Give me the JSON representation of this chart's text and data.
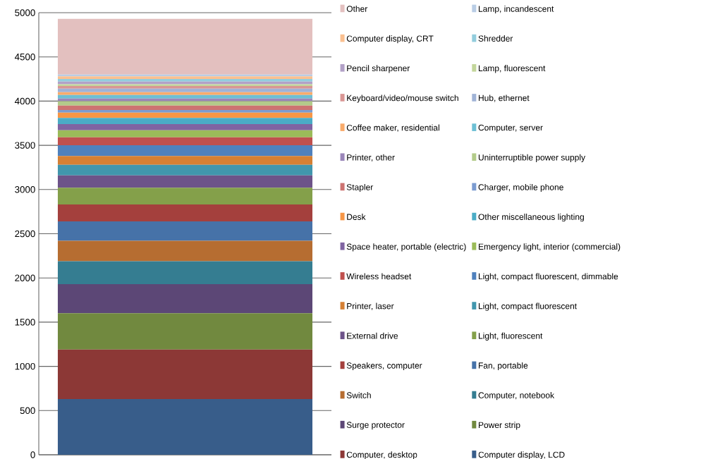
{
  "chart_data": {
    "type": "bar",
    "stacked": true,
    "categories": [
      null
    ],
    "ylim": [
      0,
      5000
    ],
    "yticks": [
      0,
      500,
      1000,
      1500,
      2000,
      2500,
      3000,
      3500,
      4000,
      4500,
      5000
    ],
    "grid": "y",
    "legend": "right",
    "series": [
      {
        "name": "Computer display, LCD",
        "color": "#385d8a",
        "values": [
          630
        ]
      },
      {
        "name": "Computer, desktop",
        "color": "#8c3836",
        "values": [
          560
        ]
      },
      {
        "name": "Power strip",
        "color": "#71893f",
        "values": [
          410
        ]
      },
      {
        "name": "Surge protector",
        "color": "#5c4776",
        "values": [
          330
        ]
      },
      {
        "name": "Computer, notebook",
        "color": "#357d91",
        "values": [
          260
        ]
      },
      {
        "name": "Switch",
        "color": "#b66d31",
        "values": [
          230
        ]
      },
      {
        "name": "Fan, portable",
        "color": "#4672a8",
        "values": [
          220
        ]
      },
      {
        "name": "Speakers, computer",
        "color": "#a4403d",
        "values": [
          190
        ]
      },
      {
        "name": "Light, fluorescent",
        "color": "#84a04a",
        "values": [
          190
        ]
      },
      {
        "name": "External drive",
        "color": "#6d5389",
        "values": [
          140
        ]
      },
      {
        "name": "Light, compact fluorescent",
        "color": "#4196ad",
        "values": [
          120
        ]
      },
      {
        "name": "Printer, laser",
        "color": "#d58034",
        "values": [
          100
        ]
      },
      {
        "name": "Light, compact fluorescent, dimmable",
        "color": "#4f81bd",
        "values": [
          120
        ]
      },
      {
        "name": "Wireless headset",
        "color": "#c0504d",
        "values": [
          90
        ]
      },
      {
        "name": "Emergency light, interior (commercial)",
        "color": "#9bbb59",
        "values": [
          80
        ]
      },
      {
        "name": "Space heater, portable (electric)",
        "color": "#8064a2",
        "values": [
          70
        ]
      },
      {
        "name": "Other miscellaneous lighting",
        "color": "#4bacc6",
        "values": [
          70
        ]
      },
      {
        "name": "Desk",
        "color": "#f79646",
        "values": [
          60
        ]
      },
      {
        "name": "Charger, mobile phone",
        "color": "#7b9bd0",
        "values": [
          30
        ]
      },
      {
        "name": "Stapler",
        "color": "#cd7371",
        "values": [
          50
        ]
      },
      {
        "name": "Uninterruptible power supply",
        "color": "#b3cb8a",
        "values": [
          50
        ]
      },
      {
        "name": "Printer, other",
        "color": "#9a86b9",
        "values": [
          30
        ]
      },
      {
        "name": "Computer, server",
        "color": "#6dbfd4",
        "values": [
          40
        ]
      },
      {
        "name": "Coffee maker, residential",
        "color": "#f9ab6b",
        "values": [
          30
        ]
      },
      {
        "name": "Hub, ethernet",
        "color": "#a0b3d6",
        "values": [
          40
        ]
      },
      {
        "name": "Keyboard/video/mouse switch",
        "color": "#d99694",
        "values": [
          30
        ]
      },
      {
        "name": "Lamp, fluorescent",
        "color": "#c3d69b",
        "values": [
          20
        ]
      },
      {
        "name": "Pencil sharpener",
        "color": "#b2a1c7",
        "values": [
          30
        ]
      },
      {
        "name": "Shredder",
        "color": "#93cddd",
        "values": [
          30
        ]
      },
      {
        "name": "Computer display, CRT",
        "color": "#fac090",
        "values": [
          30
        ]
      },
      {
        "name": "Lamp, incandescent",
        "color": "#b9cde5",
        "values": [
          20
        ]
      },
      {
        "name": "Other",
        "color": "#e3c0bf",
        "values": [
          630
        ]
      }
    ]
  }
}
